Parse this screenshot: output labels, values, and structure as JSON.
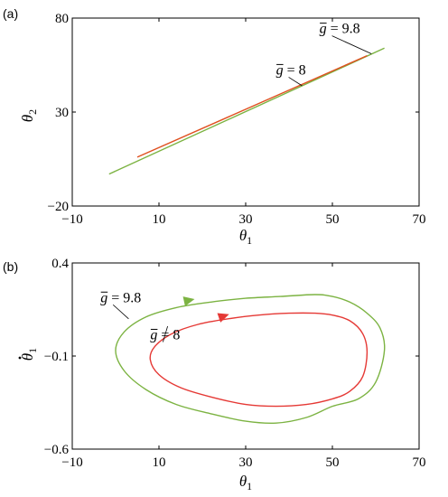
{
  "chart_data": [
    {
      "panel_label": "(a)",
      "type": "line",
      "xlabel_sym": "θ",
      "xlabel_sub": "1",
      "ylabel_sym": "θ",
      "ylabel_sub": "2",
      "xlim": [
        -10,
        70
      ],
      "ylim": [
        -20,
        80
      ],
      "xticks": [
        -10,
        10,
        30,
        50,
        70
      ],
      "yticks": [
        -20,
        30,
        80
      ],
      "xtick_labels": [
        "−10",
        "10",
        "30",
        "50",
        "70"
      ],
      "ytick_labels": [
        "−20",
        "30",
        "80"
      ],
      "series": [
        {
          "name": "g = 9.8",
          "color": "#7cb342",
          "x": [
            -1.5,
            62
          ],
          "y": [
            -3,
            64
          ]
        },
        {
          "name": "g = 8",
          "color": "#e05020",
          "x": [
            5,
            58
          ],
          "y": [
            6,
            60
          ]
        }
      ],
      "annotations": [
        {
          "sym": "g",
          "text": " = 9.8",
          "x": 47,
          "y": 72,
          "ax": 59,
          "ay": 61
        },
        {
          "sym": "g",
          "text": " = 8",
          "x": 37,
          "y": 50,
          "ax": 43,
          "ay": 44
        }
      ]
    },
    {
      "panel_label": "(b)",
      "type": "line",
      "xlabel_sym": "θ",
      "xlabel_sub": "1",
      "ylabel_sym": "θ",
      "ylabel_sub": "1",
      "ylabel_dot": true,
      "xlim": [
        -10,
        70
      ],
      "ylim": [
        -0.6,
        0.4
      ],
      "xticks": [
        -10,
        10,
        30,
        50,
        70
      ],
      "yticks": [
        -0.6,
        -0.1,
        0.4
      ],
      "xtick_labels": [
        "−10",
        "10",
        "30",
        "50",
        "70"
      ],
      "ytick_labels": [
        "−0.6",
        "−0.1",
        "0.4"
      ],
      "series": [
        {
          "name": "g = 9.8",
          "color": "#7cb342",
          "closed": true,
          "x": [
            62,
            60,
            56,
            50,
            44,
            37,
            30,
            22,
            14,
            7,
            2,
            0,
            2,
            7,
            14,
            22,
            30,
            38,
            46,
            50,
            54,
            58,
            61,
            62
          ],
          "y": [
            -0.07,
            -0.24,
            -0.33,
            -0.37,
            -0.43,
            -0.46,
            -0.45,
            -0.41,
            -0.36,
            -0.28,
            -0.18,
            -0.07,
            0.03,
            0.11,
            0.16,
            0.19,
            0.21,
            0.22,
            0.23,
            0.22,
            0.19,
            0.13,
            0.05,
            -0.07
          ]
        },
        {
          "name": "g = 8",
          "color": "#e53935",
          "closed": true,
          "x": [
            58,
            57,
            54,
            50,
            44,
            37,
            30,
            22,
            15,
            10,
            8,
            9,
            13,
            19,
            26,
            33,
            40,
            46,
            50,
            54,
            57,
            58
          ],
          "y": [
            -0.08,
            -0.21,
            -0.29,
            -0.33,
            -0.36,
            -0.37,
            -0.36,
            -0.32,
            -0.27,
            -0.2,
            -0.12,
            -0.05,
            0.02,
            0.07,
            0.1,
            0.12,
            0.13,
            0.13,
            0.12,
            0.09,
            0.02,
            -0.08
          ]
        }
      ],
      "arrows": [
        {
          "color": "#7cb342",
          "x": 17,
          "y": 0.2,
          "dx": 1,
          "dy": 0.005
        },
        {
          "color": "#e53935",
          "x": 25,
          "y": 0.115,
          "dx": 1,
          "dy": 0.008
        }
      ],
      "annotations": [
        {
          "sym": "g",
          "text": " = 9.8",
          "x": -3.5,
          "y": 0.19,
          "ax": 3,
          "ay": 0.1
        },
        {
          "sym": "g",
          "text": " = 8",
          "x": 8,
          "y": -0.01,
          "ax": 12,
          "ay": 0.06
        }
      ]
    }
  ]
}
